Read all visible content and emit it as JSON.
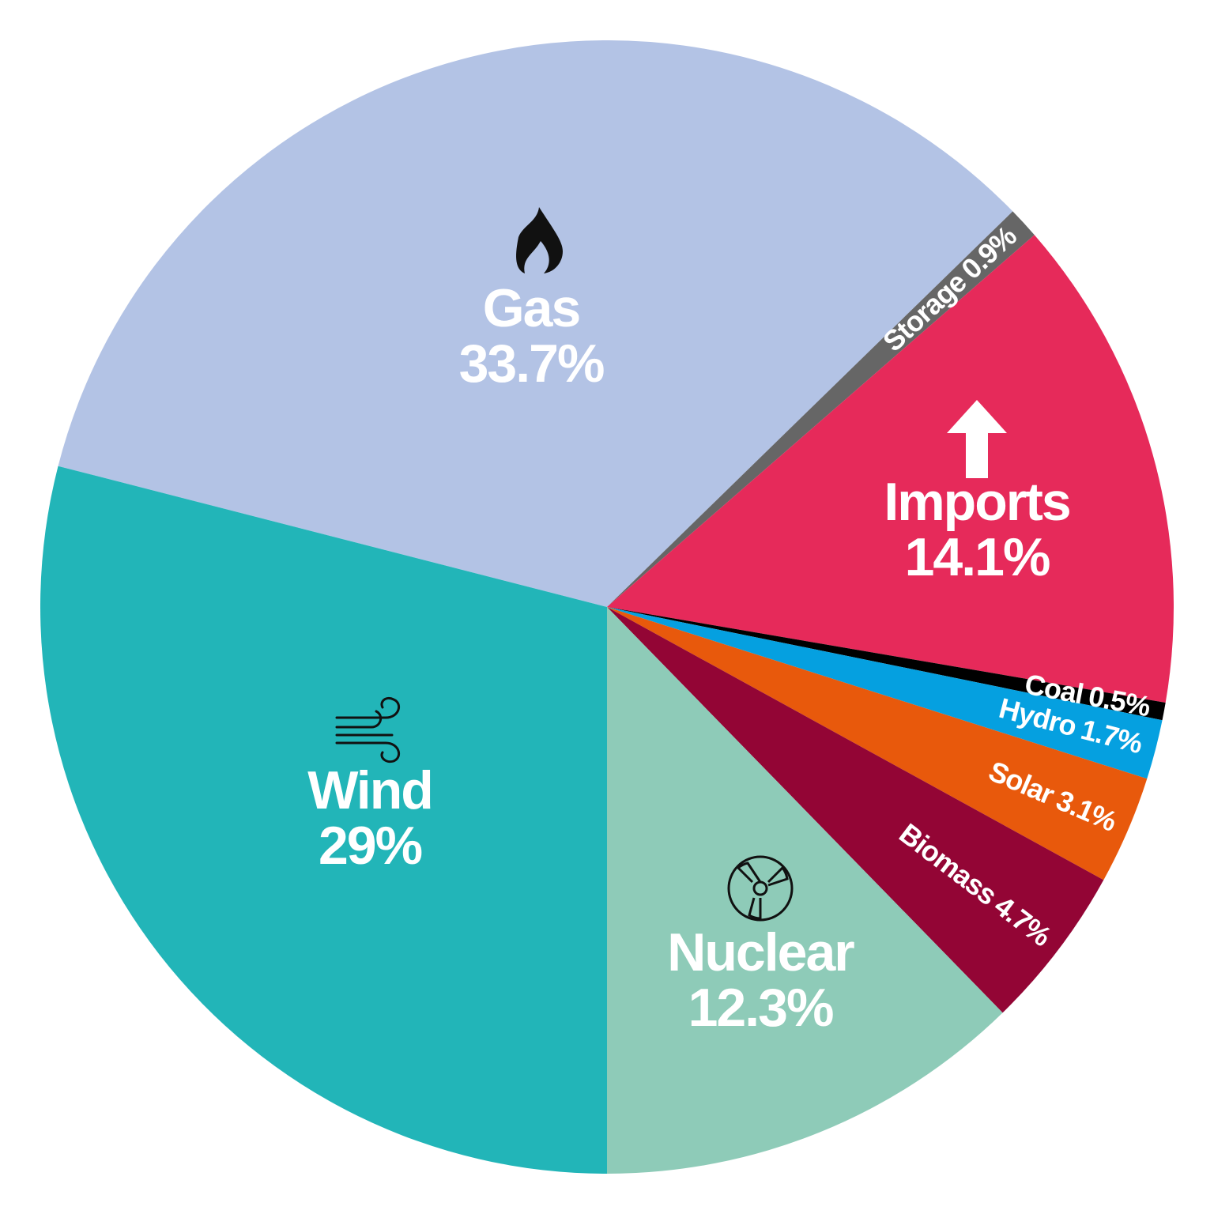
{
  "chart_data": {
    "type": "pie",
    "categories": [
      "Gas",
      "Storage",
      "Imports",
      "Coal",
      "Hydro",
      "Solar",
      "Biomass",
      "Nuclear",
      "Wind"
    ],
    "values": [
      33.7,
      0.9,
      14.1,
      0.5,
      1.7,
      3.1,
      4.7,
      12.3,
      29
    ],
    "value_labels": [
      "33.7%",
      "0.9%",
      "14.1%",
      "0.5%",
      "1.7%",
      "3.1%",
      "4.7%",
      "12.3%",
      "29%"
    ],
    "colors": [
      "#b3c3e5",
      "#666666",
      "#e62a5a",
      "#000000",
      "#05a0e0",
      "#e8590c",
      "#930535",
      "#8ecbb8",
      "#22b5b8"
    ]
  }
}
